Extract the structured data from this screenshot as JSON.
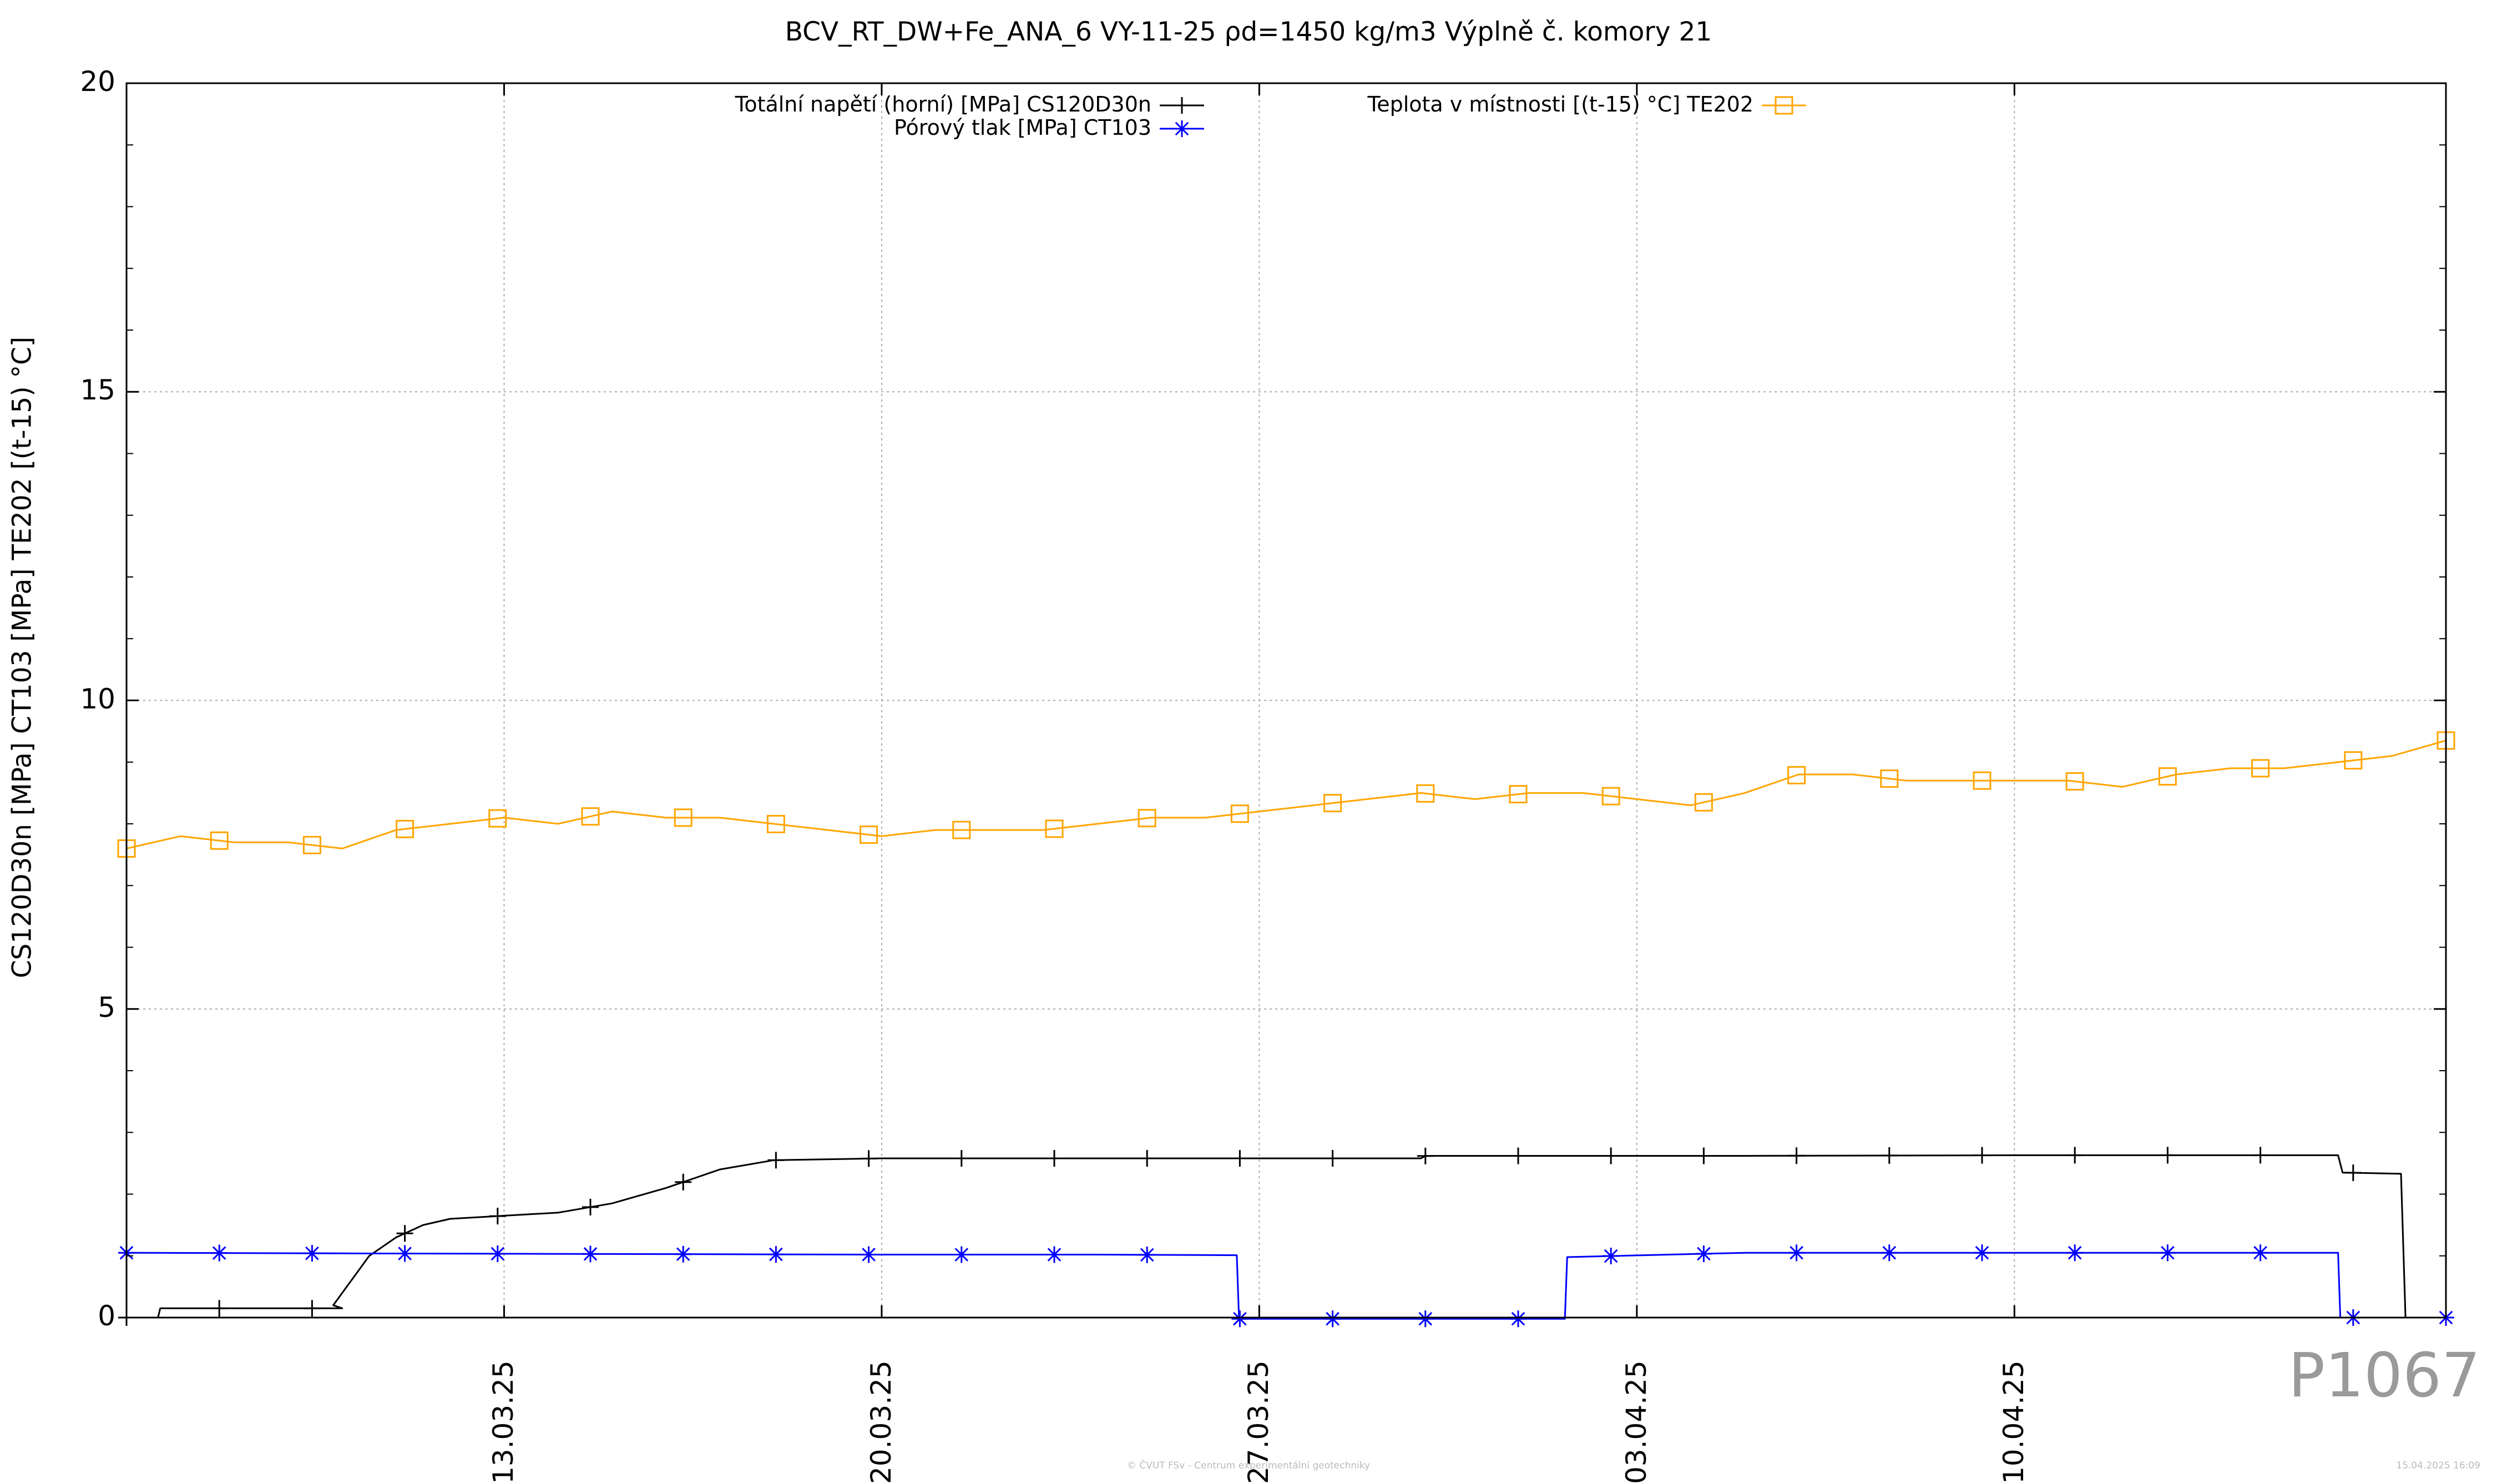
{
  "chart_data": {
    "type": "line",
    "title": "BCV_RT_DW+Fe_ANA_6 VY-11-25 ρd=1450 kg/m3 Výplně č. komory 21",
    "ylabel": "CS120D30n [MPa] CT103 [MPa] TE202 [(t-15) °C]",
    "xlabel": "",
    "ylim": [
      0,
      20
    ],
    "xlim": [
      "2025-03-06",
      "2025-04-18"
    ],
    "y_ticks": [
      "0",
      "5",
      "10",
      "15",
      "20"
    ],
    "x_ticks": [
      "13.03.25",
      "20.03.25",
      "27.03.25",
      "03.04.25",
      "10.04.25"
    ],
    "x_tick_dates": [
      "2025-03-13",
      "2025-03-20",
      "2025-03-27",
      "2025-04-03",
      "2025-04-10"
    ],
    "grid": true,
    "legend_position": "top",
    "series": [
      {
        "name": "Totální napětí (horní) [MPa] CS120D30n",
        "color": "#000000",
        "marker": "plus",
        "x": [
          "2025-03-06",
          "2025-03-06 14:00",
          "2025-03-06 15:00",
          "2025-03-08",
          "2025-03-10",
          "2025-03-09 20:00",
          "2025-03-10 04:00",
          "2025-03-10 12:00",
          "2025-03-11",
          "2025-03-11 12:00",
          "2025-03-12",
          "2025-03-13",
          "2025-03-14",
          "2025-03-15",
          "2025-03-16",
          "2025-03-17",
          "2025-03-18",
          "2025-03-20",
          "2025-03-25",
          "2025-03-30",
          "2025-03-30 02:00",
          "2025-04-01",
          "2025-04-05",
          "2025-04-10",
          "2025-04-15",
          "2025-04-16",
          "2025-04-16 02:00",
          "2025-04-17 04:00",
          "2025-04-17 06:00",
          "2025-04-18"
        ],
        "y": [
          0.0,
          0.0,
          0.15,
          0.15,
          0.15,
          0.2,
          0.6,
          1.0,
          1.3,
          1.5,
          1.6,
          1.65,
          1.7,
          1.85,
          2.1,
          2.4,
          2.55,
          2.58,
          2.58,
          2.58,
          2.62,
          2.62,
          2.62,
          2.63,
          2.63,
          2.63,
          2.35,
          2.33,
          0.0,
          0.0
        ]
      },
      {
        "name": "Pórový tlak [MPa] CT103",
        "color": "#0000ff",
        "marker": "star",
        "x": [
          "2025-03-06",
          "2025-03-10",
          "2025-03-15",
          "2025-03-20",
          "2025-03-24",
          "2025-03-26 14:00",
          "2025-03-26 15:00",
          "2025-03-30",
          "2025-04-01 16:00",
          "2025-04-01 17:00",
          "2025-04-05",
          "2025-04-10",
          "2025-04-15",
          "2025-04-16",
          "2025-04-16 01:00",
          "2025-04-18"
        ],
        "y": [
          1.05,
          1.04,
          1.03,
          1.02,
          1.02,
          1.01,
          -0.02,
          -0.02,
          -0.02,
          0.98,
          1.05,
          1.05,
          1.05,
          1.05,
          0.0,
          0.0
        ]
      },
      {
        "name": "Teplota v místnosti [(t-15) °C] TE202",
        "color": "#ffa500",
        "marker": "square",
        "x": [
          "2025-03-06",
          "2025-03-07",
          "2025-03-08",
          "2025-03-09",
          "2025-03-10",
          "2025-03-11",
          "2025-03-12",
          "2025-03-13",
          "2025-03-14",
          "2025-03-15",
          "2025-03-16",
          "2025-03-17",
          "2025-03-18",
          "2025-03-19",
          "2025-03-20",
          "2025-03-21",
          "2025-03-22",
          "2025-03-23",
          "2025-03-24",
          "2025-03-25",
          "2025-03-26",
          "2025-03-27",
          "2025-03-28",
          "2025-03-29",
          "2025-03-30",
          "2025-03-31",
          "2025-04-01",
          "2025-04-02",
          "2025-04-03",
          "2025-04-04",
          "2025-04-05",
          "2025-04-06",
          "2025-04-07",
          "2025-04-08",
          "2025-04-09",
          "2025-04-10",
          "2025-04-11",
          "2025-04-12",
          "2025-04-13",
          "2025-04-14",
          "2025-04-15",
          "2025-04-16",
          "2025-04-17",
          "2025-04-18"
        ],
        "y": [
          7.6,
          7.8,
          7.7,
          7.7,
          7.6,
          7.9,
          8.0,
          8.1,
          8.0,
          8.2,
          8.1,
          8.1,
          8.0,
          7.9,
          7.8,
          7.9,
          7.9,
          7.9,
          8.0,
          8.1,
          8.1,
          8.2,
          8.3,
          8.4,
          8.5,
          8.4,
          8.5,
          8.5,
          8.4,
          8.3,
          8.5,
          8.8,
          8.8,
          8.7,
          8.7,
          8.7,
          8.7,
          8.6,
          8.8,
          8.9,
          8.9,
          9.0,
          9.1,
          9.35
        ]
      }
    ]
  },
  "watermark": "P1067",
  "footer": {
    "left": "© ČVUT FSv - Centrum experimentální geotechniky",
    "right": "15.04.2025 16:09"
  }
}
